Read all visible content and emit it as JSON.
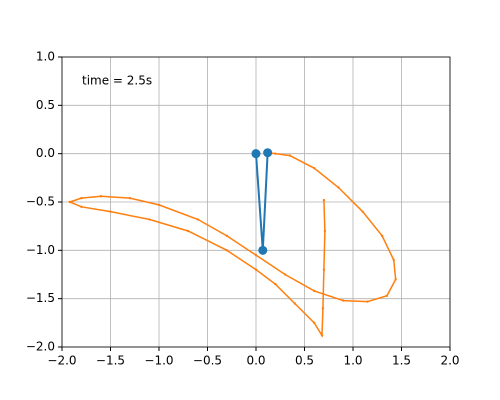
{
  "chart_data": {
    "type": "line",
    "annotation": "time = 2.5s",
    "xlim": [
      -2,
      2
    ],
    "ylim": [
      -2,
      1
    ],
    "xticks": [
      {
        "value": -2,
        "label": "−2.0"
      },
      {
        "value": -1.5,
        "label": "−1.5"
      },
      {
        "value": -1,
        "label": "−1.0"
      },
      {
        "value": -0.5,
        "label": "−0.5"
      },
      {
        "value": 0,
        "label": "0.0"
      },
      {
        "value": 0.5,
        "label": "0.5"
      },
      {
        "value": 1,
        "label": "1.0"
      },
      {
        "value": 1.5,
        "label": "1.5"
      },
      {
        "value": 2,
        "label": "2.0"
      }
    ],
    "yticks": [
      {
        "value": -2,
        "label": "−2.0"
      },
      {
        "value": -1.5,
        "label": "−1.5"
      },
      {
        "value": -1,
        "label": "−1.0"
      },
      {
        "value": -0.5,
        "label": "−0.5"
      },
      {
        "value": 0,
        "label": "0.0"
      },
      {
        "value": 0.5,
        "label": "0.5"
      },
      {
        "value": 1,
        "label": "1.0"
      }
    ],
    "grid": true,
    "series": [
      {
        "color": "#ff7f0e",
        "marker": "dot",
        "x": [
          0.7,
          0.71,
          0.7,
          0.69,
          0.68,
          0.6,
          0.4,
          0.2,
          0,
          -0.3,
          -0.7,
          -1.1,
          -1.5,
          -1.8,
          -1.92,
          -1.8,
          -1.6,
          -1.3,
          -1.0,
          -0.6,
          -0.3,
          0,
          0.3,
          0.6,
          0.9,
          1.15,
          1.35,
          1.44,
          1.42,
          1.3,
          1.1,
          0.85,
          0.6,
          0.35,
          0.2,
          0.12
        ],
        "values": [
          -0.48,
          -0.8,
          -1.2,
          -1.6,
          -1.88,
          -1.75,
          -1.55,
          -1.35,
          -1.2,
          -1.0,
          -0.8,
          -0.68,
          -0.6,
          -0.55,
          -0.5,
          -0.46,
          -0.44,
          -0.46,
          -0.53,
          -0.68,
          -0.85,
          -1.05,
          -1.25,
          -1.42,
          -1.52,
          -1.53,
          -1.47,
          -1.3,
          -1.1,
          -0.85,
          -0.6,
          -0.35,
          -0.15,
          -0.02,
          0.0,
          0.01
        ]
      },
      {
        "color": "#1f77b4",
        "marker": "circle",
        "x": [
          0,
          0.07,
          0.12
        ],
        "values": [
          0,
          -1.0,
          0.01
        ]
      }
    ]
  }
}
